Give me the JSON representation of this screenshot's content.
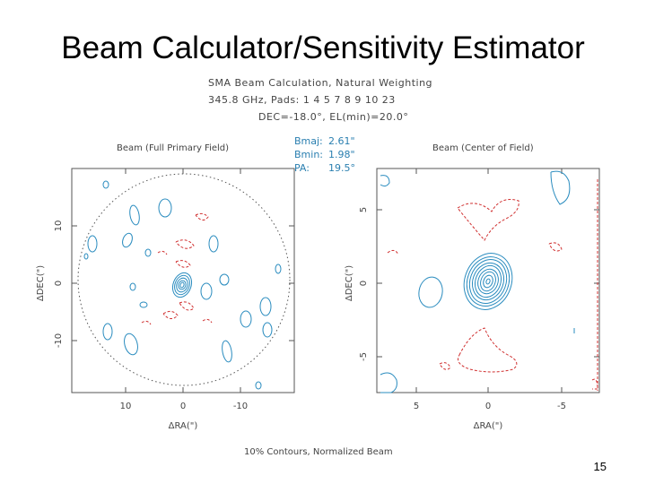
{
  "slide": {
    "title": "Beam Calculator/Sensitivity Estimator",
    "page_number": "15"
  },
  "figure": {
    "header_line1": "SMA Beam Calculation, Natural Weighting",
    "header_line2": "345.8 GHz,   Pads:  1  4  5  7  8  9 10 23",
    "header_line3": "DEC=-18.0°, EL(min)=20.0°",
    "left_panel_title": "Beam (Full Primary Field)",
    "right_panel_title": "Beam (Center of Field)",
    "bmaj_label": "Bmaj:",
    "bmaj_value": "2.61\"",
    "bmin_label": "Bmin:",
    "bmin_value": "1.98\"",
    "pa_label": "PA:",
    "pa_value": "19.5°",
    "footer": "10% Contours, Normalized Beam",
    "left_y_label": "ΔDEC(\")",
    "left_x_label": "ΔRA(\")",
    "right_y_label": "ΔDEC(\")",
    "right_x_label": "ΔRA(\")",
    "left_x_ticks": [
      "10",
      "0",
      "-10"
    ],
    "left_y_ticks": [
      "10",
      "0",
      "-10"
    ],
    "right_x_ticks": [
      "5",
      "0",
      "-5"
    ],
    "right_y_ticks": [
      "5",
      "0",
      "-5"
    ],
    "colors": {
      "positive": "#2a8cbf",
      "negative": "#d03030",
      "frame": "#555555"
    }
  }
}
